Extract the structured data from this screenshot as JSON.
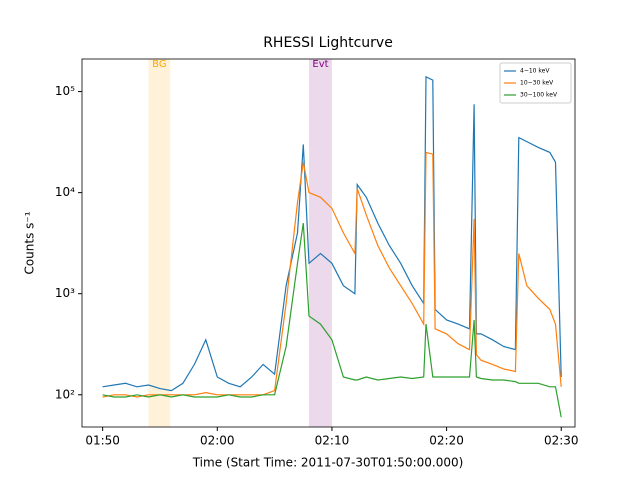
{
  "chart_data": {
    "type": "line",
    "title": "RHESSI Lightcurve",
    "xlabel": "Time (Start Time: 2011-07-30T01:50:00.000)",
    "ylabel": "Counts s⁻¹",
    "x": [
      0,
      1,
      2,
      3,
      4,
      5,
      6,
      7,
      8,
      9,
      10,
      11,
      12,
      13,
      14,
      15,
      16,
      17,
      17.5,
      18,
      19,
      20,
      21,
      22,
      22.2,
      23,
      24,
      25,
      26,
      27,
      28,
      28.2,
      28.8,
      29,
      30,
      31,
      32,
      32.4,
      32.6,
      33,
      34,
      35,
      36,
      36.3,
      37,
      38,
      39,
      39.5,
      40
    ],
    "series": [
      {
        "name": "4−10 keV",
        "color": "#1f77b4",
        "values": [
          120,
          125,
          130,
          120,
          125,
          115,
          110,
          130,
          200,
          350,
          150,
          130,
          120,
          150,
          200,
          160,
          1200,
          4000,
          30000,
          2000,
          2500,
          2000,
          1200,
          1000,
          12000,
          9000,
          5000,
          3000,
          2000,
          1200,
          800,
          140000,
          130000,
          700,
          550,
          500,
          450,
          75000,
          400,
          400,
          350,
          300,
          280,
          35000,
          32000,
          28000,
          25000,
          20000,
          150
        ]
      },
      {
        "name": "10−30 keV",
        "color": "#ff7f0e",
        "values": [
          95,
          100,
          100,
          95,
          100,
          100,
          100,
          100,
          100,
          105,
          100,
          100,
          100,
          100,
          100,
          110,
          800,
          8000,
          20000,
          10000,
          9000,
          7000,
          4000,
          2500,
          11000,
          6000,
          3000,
          1800,
          1200,
          800,
          500,
          25000,
          24000,
          450,
          400,
          320,
          280,
          5500,
          250,
          220,
          200,
          180,
          170,
          2500,
          1200,
          900,
          700,
          500,
          120
        ]
      },
      {
        "name": "30−100 keV",
        "color": "#2ca02c",
        "values": [
          100,
          95,
          95,
          100,
          95,
          100,
          95,
          100,
          95,
          95,
          95,
          100,
          95,
          95,
          100,
          100,
          300,
          2000,
          5000,
          600,
          500,
          350,
          150,
          140,
          140,
          150,
          140,
          145,
          150,
          145,
          150,
          500,
          150,
          150,
          150,
          150,
          150,
          550,
          150,
          145,
          140,
          140,
          135,
          130,
          130,
          130,
          120,
          120,
          60
        ]
      }
    ],
    "spans": [
      {
        "label": "BG",
        "start": 4.0,
        "end": 5.9,
        "color": "orange"
      },
      {
        "label": "Evt",
        "start": 18.0,
        "end": 20.0,
        "color": "purple"
      }
    ],
    "xlim": [
      -1.8,
      41.2
    ],
    "xticks": [
      {
        "value": 0,
        "label": "01:50"
      },
      {
        "value": 10,
        "label": "02:00"
      },
      {
        "value": 20,
        "label": "02:10"
      },
      {
        "value": 30,
        "label": "02:20"
      },
      {
        "value": 40,
        "label": "02:30"
      }
    ],
    "ylim": [
      48,
      210000
    ],
    "log_y": true,
    "yticks": [
      {
        "value": 100,
        "label": "10²"
      },
      {
        "value": 1000,
        "label": "10³"
      },
      {
        "value": 10000,
        "label": "10⁴"
      },
      {
        "value": 100000,
        "label": "10⁵"
      }
    ],
    "legend": "upper right"
  }
}
